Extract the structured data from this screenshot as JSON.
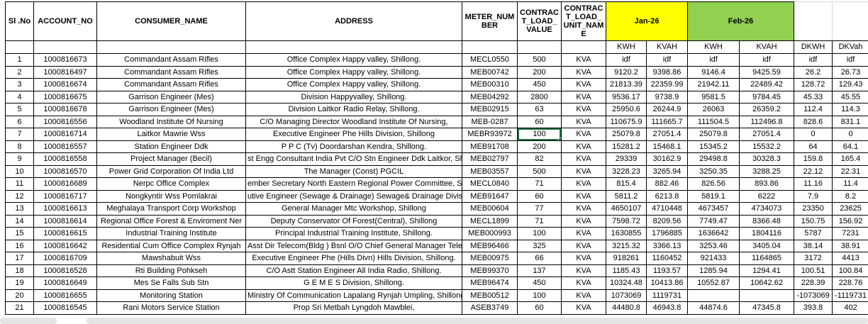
{
  "table": {
    "columns": {
      "sl_no": "Sl .No",
      "account_no": "ACCOUNT_NO",
      "consumer_name": "CONSUMER_NAME",
      "address": "ADDRESS",
      "meter_number": "METER_NUMBER",
      "contract_load_value": "CONTRACT_LOAD_VALUE",
      "contract_load_unit_name": "CONTRACT_LOAD_UNIT_NAME"
    },
    "month_groups": [
      {
        "label": "Jan-26",
        "color": "#FFFF00",
        "sub": [
          "KWH",
          "KVAH"
        ]
      },
      {
        "label": "Feb-26",
        "color": "#92D050",
        "sub": [
          "KWH",
          "KVAH"
        ]
      }
    ],
    "sub_headers": [
      "KWH",
      "KVAH",
      "KWH",
      "KVAH",
      "DKWH",
      "DKVah"
    ],
    "column_keys": [
      "sl-no",
      "account-no",
      "consumer-name",
      "address",
      "meter-number",
      "contract-load-value",
      "contract-load-unit-name",
      "jan-kwh",
      "jan-kvah",
      "feb-kwh",
      "feb-kvah",
      "dkwh",
      "dkvah"
    ],
    "rows": [
      [
        "1",
        "1000816673",
        "Commandant Assam Rifles",
        "Office Complex Happy valley, Shillong.",
        "MECL0550",
        "500",
        "KVA",
        "idf",
        "idf",
        "idf",
        "idf",
        "idf",
        "idf"
      ],
      [
        "2",
        "1000816497",
        "Commandant Assam Rifles",
        "Office Complex Happy valley, Shillong.",
        "MEB00742",
        "200",
        "KVA",
        "9120.2",
        "9398.86",
        "9146.4",
        "9425.59",
        "26.2",
        "26.73"
      ],
      [
        "3",
        "1000816674",
        "Commandant Assam Rifles",
        "Office Complex Happy valley, Shillong.",
        "MEB00310",
        "450",
        "KVA",
        "21813.39",
        "22359.99",
        "21942.11",
        "22489.42",
        "128.72",
        "129.43"
      ],
      [
        "4",
        "1000816675",
        "Garrison Engineer (Mes)",
        "Division Happyvalley, Shillong.",
        "MEB04292",
        "2800",
        "KVA",
        "9536.17",
        "9738.9",
        "9581.5",
        "9784.45",
        "45.33",
        "45.55"
      ],
      [
        "5",
        "1000816678",
        "Garrison Engineer (Mes)",
        "Division Laitkor Radio Relay, Shillong.",
        "MEB02915",
        "63",
        "KVA",
        "25950.6",
        "26244.9",
        "26063",
        "26359.2",
        "112.4",
        "114.3"
      ],
      [
        "6",
        "1000816556",
        "Woodland Institute Of Nursing",
        "C/O Managing Director Woodland Institute Of Nursing,",
        "MEB-0287",
        "60",
        "KVA",
        "110675.9",
        "111665.7",
        "111504.5",
        "112496.8",
        "828.6",
        "831.1"
      ],
      [
        "7",
        "1000816714",
        "Laitkor Mawrie Wss",
        "Executive Engineer Phe Hills Division, Shillong",
        "MEBR93972",
        "100",
        "KVA",
        "25079.8",
        "27051.4",
        "25079.8",
        "27051.4",
        "0",
        "0"
      ],
      [
        "8",
        "1000816557",
        "Station Engineer Ddk",
        "P P C (Tv) Doordarshan Kendra, Shillong.",
        "MEB91708",
        "200",
        "KVA",
        "15281.2",
        "15468.1",
        "15345.2",
        "15532.2",
        "64",
        "64.1"
      ],
      [
        "9",
        "1000816558",
        "Project Manager (Becil)",
        "st Engg Consultant India Pvt C/O Stn Engineer Ddk Laitkor, Shillong. #",
        "MEB02797",
        "82",
        "KVA",
        "29339",
        "30162.9",
        "29498.8",
        "30328.3",
        "159.8",
        "165.4"
      ],
      [
        "10",
        "1000816570",
        "Power Grid Corporation Of India Ltd",
        "The Manager (Const) PGCIL",
        "MEB03557",
        "500",
        "KVA",
        "3228.23",
        "3265.94",
        "3250.35",
        "3288.25",
        "22.12",
        "22.31"
      ],
      [
        "11",
        "1000816689",
        "Nerpc Office Complex",
        "ember Secretary North Eastern Regional Power Committee, Shillon",
        "MECL0840",
        "71",
        "KVA",
        "815.4",
        "882.46",
        "826.56",
        "893.86",
        "11.16",
        "11.4"
      ],
      [
        "12",
        "1000816717",
        "Nongkyntir Wss Pomlakrai",
        "utive Engineer (Sewage & Drainage) Sewage& Drainage Division, Shi",
        "MEB91647",
        "60",
        "KVA",
        "5811.2",
        "6213.8",
        "5819.1",
        "6222",
        "7.9",
        "8.2"
      ],
      [
        "13",
        "1000816613",
        "Meghalaya Transport Corp Workshop",
        "General Manager Mtc Workshop, Shillong",
        "MEB00604",
        "77",
        "KVA",
        "4650107",
        "4710448",
        "4673457",
        "4734073",
        "23350",
        "23625"
      ],
      [
        "14",
        "1000816614",
        "Regional Office Forest & Enviroment Ner",
        "Deputy Conservator Of Forest(Central), Shillong",
        "MECL1899",
        "71",
        "KVA",
        "7598.72",
        "8209.56",
        "7749.47",
        "8366.48",
        "150.75",
        "156.92"
      ],
      [
        "15",
        "1000816615",
        "Industrial Training Institute",
        "Principal Industrial Training Institute, Shillong.",
        "MEB000993",
        "100",
        "KVA",
        "1630855",
        "1796885",
        "1636642",
        "1804116",
        "5787",
        "7231"
      ],
      [
        "16",
        "1000816642",
        "Residential Cum Office Complex Rynjah",
        "Asst Dir Telecom(Bldg ) Bsnl O/O Chief General Manager Telecom",
        "MEB96466",
        "325",
        "KVA",
        "3215.32",
        "3366.13",
        "3253.46",
        "3405.04",
        "38.14",
        "38.91"
      ],
      [
        "17",
        "1000816709",
        "Mawshabuit Wss",
        "Executive Engineer Phe (Hills Divn) Hills Division, Shillong.",
        "MEB00975",
        "66",
        "KVA",
        "918261",
        "1160452",
        "921433",
        "1164865",
        "3172",
        "4413"
      ],
      [
        "18",
        "1000816528",
        "Rti Building Pohkseh",
        "C/O Astt Station Engineer All India Radio, Shillong.",
        "MEB99370",
        "137",
        "KVA",
        "1185.43",
        "1193.57",
        "1285.94",
        "1294.41",
        "100.51",
        "100.84"
      ],
      [
        "19",
        "1000816649",
        "Mes Se Falls Sub Stn",
        "G E M E S Division, Shillong.",
        "MEB96474",
        "450",
        "KVA",
        "10324.48",
        "10413.86",
        "10552.87",
        "10642.62",
        "228.39",
        "228.76"
      ],
      [
        "20",
        "1000816655",
        "Monitoring Station",
        "Ministry Of Communication Lapalang Rynjah Umpling, Shillong.",
        "MEB00512",
        "100",
        "KVA",
        "1073069",
        "1119731",
        "",
        "",
        "-1073069",
        "-1119731"
      ],
      [
        "21",
        "1000816545",
        "Rani Motors Service Station",
        "Prop Sri Metbah Lyngdoh Mawblei,",
        "ASEB3749",
        "60",
        "KVA",
        "44480.8",
        "46943.8",
        "44874.6",
        "47345.8",
        "393.8",
        "402"
      ]
    ]
  },
  "selection": {
    "row_index": 6,
    "col_index": 5,
    "value": "100",
    "border_color": "#217346"
  }
}
